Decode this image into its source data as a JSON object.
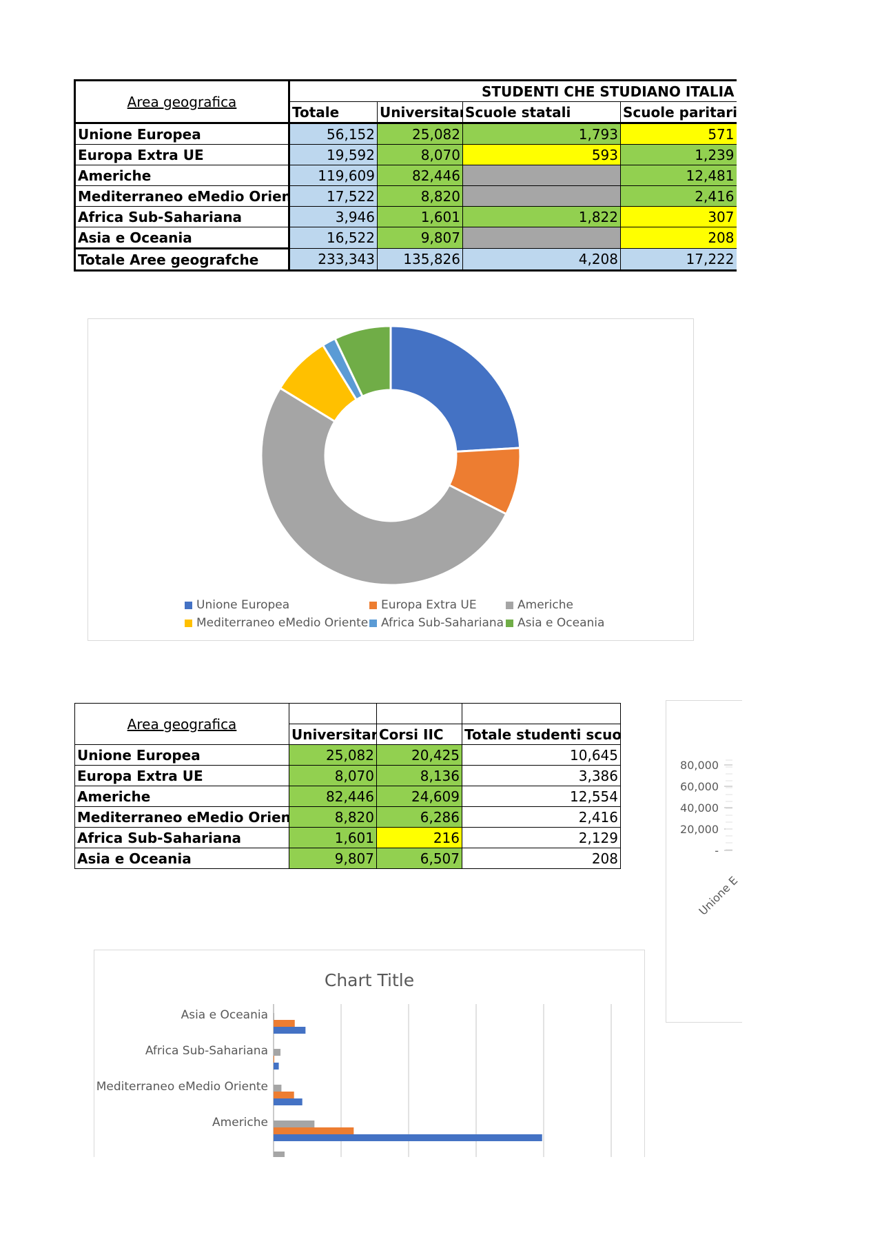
{
  "table1": {
    "area_header": "Area geografica",
    "group_header": "STUDENTI CHE STUDIANO ITALIA",
    "columns": [
      "Totale",
      "Universitari",
      "Scuole statali",
      "Scuole paritarie"
    ],
    "rows": [
      {
        "area": "Unione Europea",
        "totale": "56,152",
        "universitari": "25,082",
        "statali": "1,793",
        "paritarie": "571"
      },
      {
        "area": "Europa Extra UE",
        "totale": "19,592",
        "universitari": "8,070",
        "statali": "593",
        "paritarie": "1,239"
      },
      {
        "area": "Americhe",
        "totale": "119,609",
        "universitari": "82,446",
        "statali": "",
        "paritarie": "12,481"
      },
      {
        "area": "Mediterraneo eMedio Oriente",
        "totale": "17,522",
        "universitari": "8,820",
        "statali": "",
        "paritarie": "2,416"
      },
      {
        "area": "Africa Sub-Sahariana",
        "totale": "3,946",
        "universitari": "1,601",
        "statali": "1,822",
        "paritarie": "307"
      },
      {
        "area": "Asia e Oceania",
        "totale": "16,522",
        "universitari": "9,807",
        "statali": "",
        "paritarie": "208"
      },
      {
        "area": "Totale Aree geografche",
        "totale": "233,343",
        "universitari": "135,826",
        "statali": "4,208",
        "paritarie": "17,222"
      }
    ]
  },
  "table2": {
    "area_header": "Area geografica",
    "columns": [
      "Universitari",
      "Corsi IIC",
      "Totale studenti scuola"
    ],
    "rows": [
      {
        "area": "Unione Europea",
        "universitari": "25,082",
        "corsi": "20,425",
        "scuola": "10,645"
      },
      {
        "area": "Europa Extra UE",
        "universitari": "8,070",
        "corsi": "8,136",
        "scuola": "3,386"
      },
      {
        "area": "Americhe",
        "universitari": "82,446",
        "corsi": "24,609",
        "scuola": "12,554"
      },
      {
        "area": "Mediterraneo eMedio Oriente",
        "universitari": "8,820",
        "corsi": "6,286",
        "scuola": "2,416"
      },
      {
        "area": "Africa Sub-Sahariana",
        "universitari": "1,601",
        "corsi": "216",
        "scuola": "2,129"
      },
      {
        "area": "Asia e Oceania",
        "universitari": "9,807",
        "corsi": "6,507",
        "scuola": "208"
      }
    ]
  },
  "chart_data": [
    {
      "type": "pie",
      "variant": "donut",
      "title": "",
      "categories": [
        "Unione Europea",
        "Europa Extra UE",
        "Americhe",
        "Mediterraneo eMedio Oriente",
        "Africa Sub-Sahariana",
        "Asia e Oceania"
      ],
      "values": [
        56152,
        19592,
        119609,
        17522,
        3946,
        16522
      ],
      "colors": [
        "#4472c4",
        "#ed7d31",
        "#a5a5a5",
        "#ffc000",
        "#5b9bd5",
        "#70ad47"
      ],
      "legend": "bottom"
    },
    {
      "type": "bar",
      "orientation": "horizontal",
      "title": "Chart Title",
      "categories_visible": [
        "Asia e Oceania",
        "Africa Sub-Sahariana",
        "Mediterraneo eMedio Oriente",
        "Americhe"
      ],
      "series": [
        {
          "name": "Universitari",
          "color": "#4472c4",
          "values": [
            9807,
            1601,
            8820,
            82446
          ]
        },
        {
          "name": "Corsi IIC",
          "color": "#ed7d31",
          "values": [
            6507,
            216,
            6286,
            24609
          ]
        },
        {
          "name": "Totale studenti scuola",
          "color": "#a5a5a5",
          "values": [
            208,
            2129,
            2416,
            12554
          ]
        }
      ],
      "partial_bottom_bar_value": 3386,
      "xlim": [
        0,
        110000
      ],
      "grid": true
    },
    {
      "type": "bar",
      "title": "",
      "yticks": [
        "80,000",
        "60,000",
        "40,000",
        "20,000",
        "-"
      ],
      "xlabel_partial": "Unione E",
      "cropped": true
    }
  ]
}
